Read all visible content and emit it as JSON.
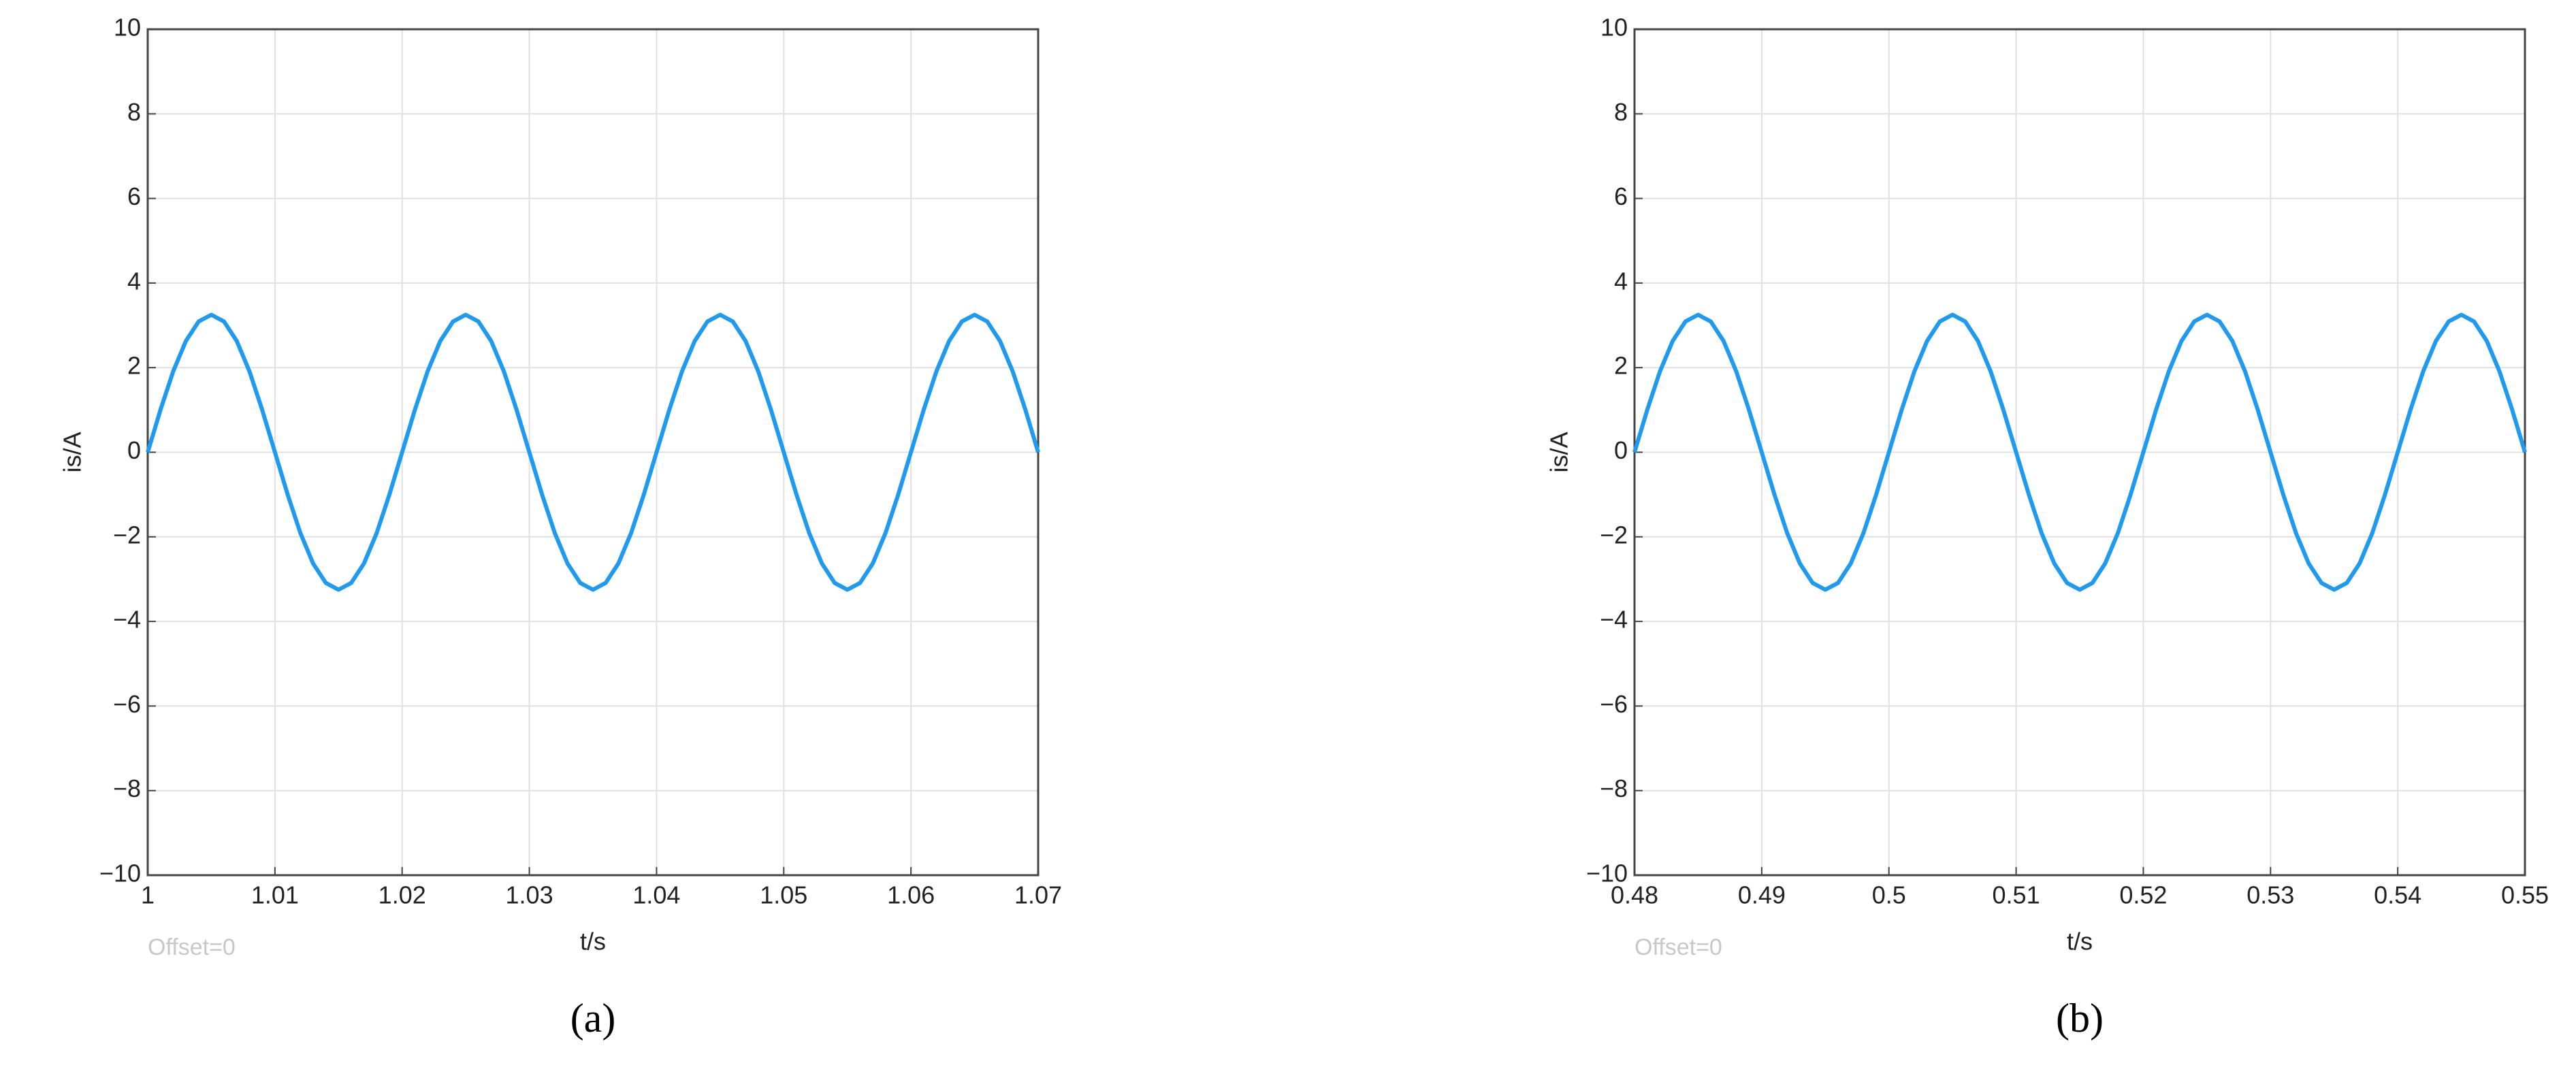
{
  "chart_data": [
    {
      "type": "line",
      "x_label": "t/s",
      "y_label": "is/A",
      "note": "Offset=0",
      "caption": "(a)",
      "color": "#1e9bf0",
      "grid": true,
      "xlim": [
        1,
        1.07
      ],
      "ylim": [
        -10,
        10
      ],
      "xticks": [
        1,
        1.01,
        1.02,
        1.03,
        1.04,
        1.05,
        1.06,
        1.07
      ],
      "yticks": [
        {
          "value": -10,
          "label": "−10"
        },
        {
          "value": -8,
          "label": "−8"
        },
        {
          "value": -6,
          "label": "−6"
        },
        {
          "value": -4,
          "label": "−4"
        },
        {
          "value": -2,
          "label": "−2"
        },
        0,
        2,
        4,
        6,
        8,
        10
      ],
      "x": [
        1,
        1.001,
        1.002,
        1.003,
        1.004,
        1.005,
        1.006,
        1.007,
        1.008,
        1.009,
        1.01,
        1.011,
        1.012,
        1.013,
        1.014,
        1.015,
        1.016,
        1.017,
        1.018,
        1.019,
        1.02,
        1.021,
        1.022,
        1.023,
        1.024,
        1.025,
        1.026,
        1.027,
        1.028,
        1.029,
        1.03,
        1.031,
        1.032,
        1.033,
        1.034,
        1.035,
        1.036,
        1.037,
        1.038,
        1.039,
        1.04,
        1.041,
        1.042,
        1.043,
        1.044,
        1.045,
        1.046,
        1.047,
        1.048,
        1.049,
        1.05,
        1.051,
        1.052,
        1.053,
        1.054,
        1.055,
        1.056,
        1.057,
        1.058,
        1.059,
        1.06,
        1.061,
        1.062,
        1.063,
        1.064,
        1.065,
        1.066,
        1.067,
        1.068,
        1.069,
        1.07
      ],
      "values": [
        0,
        1.0,
        1.91,
        2.63,
        3.09,
        3.25,
        3.09,
        2.63,
        1.91,
        1.0,
        0,
        -1.0,
        -1.91,
        -2.63,
        -3.09,
        -3.25,
        -3.09,
        -2.63,
        -1.91,
        -1.0,
        0,
        1.0,
        1.91,
        2.63,
        3.09,
        3.25,
        3.09,
        2.63,
        1.91,
        1.0,
        0,
        -1.0,
        -1.91,
        -2.63,
        -3.09,
        -3.25,
        -3.09,
        -2.63,
        -1.91,
        -1.0,
        0,
        1.0,
        1.91,
        2.63,
        3.09,
        3.25,
        3.09,
        2.63,
        1.91,
        1.0,
        0,
        -1.0,
        -1.91,
        -2.63,
        -3.09,
        -3.25,
        -3.09,
        -2.63,
        -1.91,
        -1.0,
        0,
        1.0,
        1.91,
        2.63,
        3.09,
        3.25,
        3.09,
        2.63,
        1.91,
        1.0,
        0
      ]
    },
    {
      "type": "line",
      "x_label": "t/s",
      "y_label": "is/A",
      "note": "Offset=0",
      "caption": "(b)",
      "color": "#1e9bf0",
      "grid": true,
      "xlim": [
        0.48,
        0.55
      ],
      "ylim": [
        -10,
        10
      ],
      "xticks": [
        0.48,
        0.49,
        0.5,
        0.51,
        0.52,
        0.53,
        0.54,
        0.55
      ],
      "yticks": [
        {
          "value": -10,
          "label": "−10"
        },
        {
          "value": -8,
          "label": "−8"
        },
        {
          "value": -6,
          "label": "−6"
        },
        {
          "value": -4,
          "label": "−4"
        },
        {
          "value": -2,
          "label": "−2"
        },
        0,
        2,
        4,
        6,
        8,
        10
      ],
      "x": [
        0.48,
        0.481,
        0.482,
        0.483,
        0.484,
        0.485,
        0.486,
        0.487,
        0.488,
        0.489,
        0.49,
        0.491,
        0.492,
        0.493,
        0.494,
        0.495,
        0.496,
        0.497,
        0.498,
        0.499,
        0.5,
        0.501,
        0.502,
        0.503,
        0.504,
        0.505,
        0.506,
        0.507,
        0.508,
        0.509,
        0.51,
        0.511,
        0.512,
        0.513,
        0.514,
        0.515,
        0.516,
        0.517,
        0.518,
        0.519,
        0.52,
        0.521,
        0.522,
        0.523,
        0.524,
        0.525,
        0.526,
        0.527,
        0.528,
        0.529,
        0.53,
        0.531,
        0.532,
        0.533,
        0.534,
        0.535,
        0.536,
        0.537,
        0.538,
        0.539,
        0.54,
        0.541,
        0.542,
        0.543,
        0.544,
        0.545,
        0.546,
        0.547,
        0.548,
        0.549,
        0.55
      ],
      "values": [
        0,
        1.0,
        1.91,
        2.63,
        3.09,
        3.25,
        3.09,
        2.63,
        1.91,
        1.0,
        0,
        -1.0,
        -1.91,
        -2.63,
        -3.09,
        -3.25,
        -3.09,
        -2.63,
        -1.91,
        -1.0,
        0,
        1.0,
        1.91,
        2.63,
        3.09,
        3.25,
        3.09,
        2.63,
        1.91,
        1.0,
        0,
        -1.0,
        -1.91,
        -2.63,
        -3.09,
        -3.25,
        -3.09,
        -2.63,
        -1.91,
        -1.0,
        0,
        1.0,
        1.91,
        2.63,
        3.09,
        3.25,
        3.09,
        2.63,
        1.91,
        1.0,
        0,
        -1.0,
        -1.91,
        -2.63,
        -3.09,
        -3.25,
        -3.09,
        -2.63,
        -1.91,
        -1.0,
        0,
        1.0,
        1.91,
        2.63,
        3.09,
        3.25,
        3.09,
        2.63,
        1.91,
        1.0,
        0
      ]
    }
  ]
}
